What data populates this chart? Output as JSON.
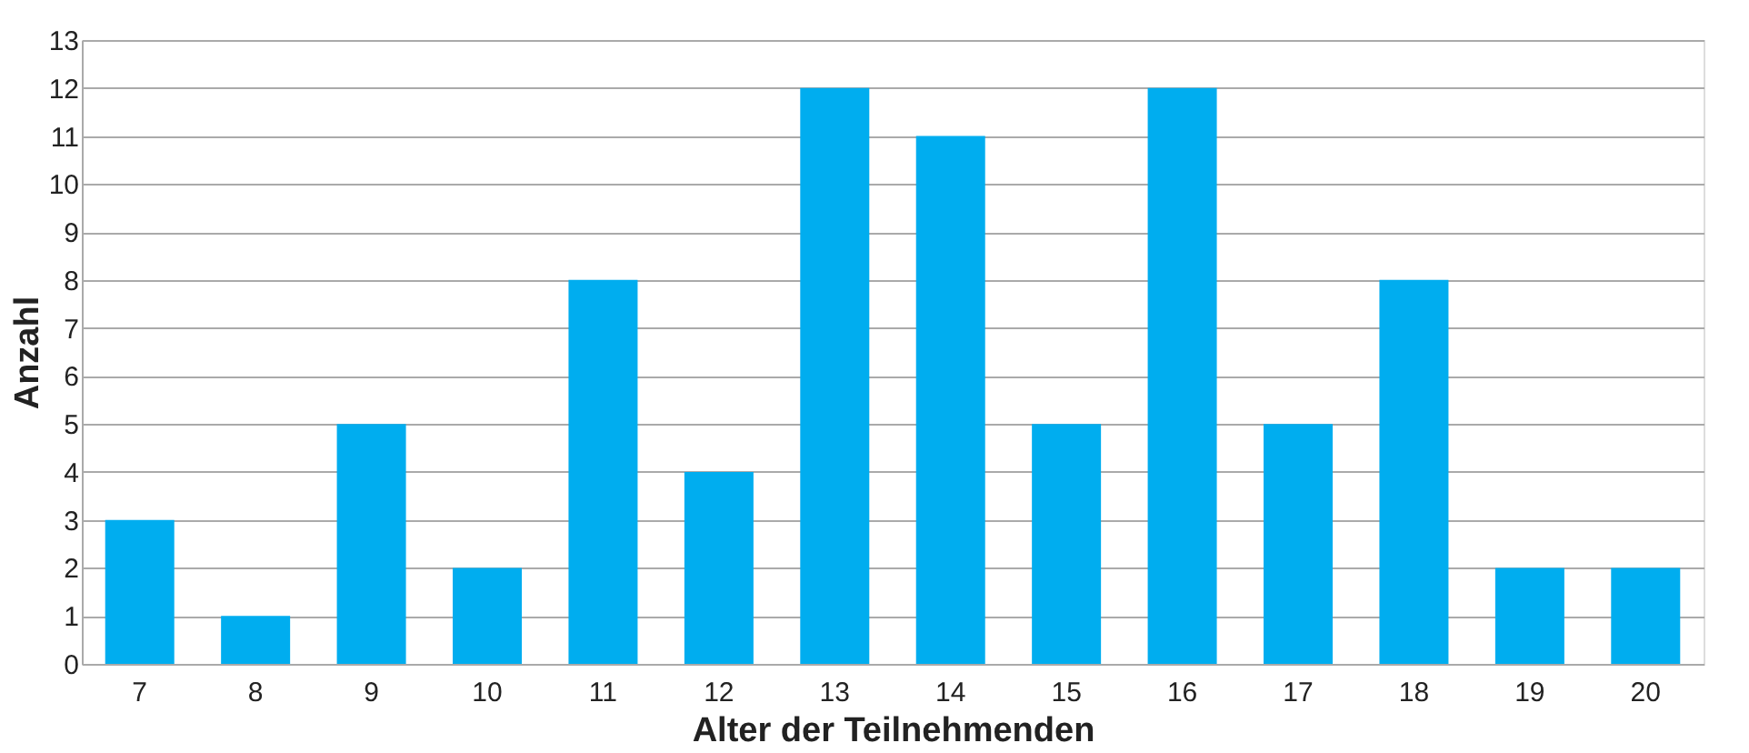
{
  "chart_data": {
    "type": "bar",
    "xlabel": "Alter der Teilnehmenden",
    "ylabel": "Anzahl",
    "categories": [
      "7",
      "8",
      "9",
      "10",
      "11",
      "12",
      "13",
      "14",
      "15",
      "16",
      "17",
      "18",
      "19",
      "20"
    ],
    "series": [
      {
        "color": "#00adef",
        "values": [
          3,
          1,
          5,
          2,
          8,
          4,
          12,
          11,
          5,
          12,
          5,
          8,
          2,
          2
        ]
      }
    ],
    "ylim": [
      0,
      13
    ],
    "yticks": [
      0,
      1,
      2,
      3,
      4,
      5,
      6,
      7,
      8,
      9,
      10,
      11,
      12,
      13
    ],
    "grid": "y",
    "legend": false
  }
}
